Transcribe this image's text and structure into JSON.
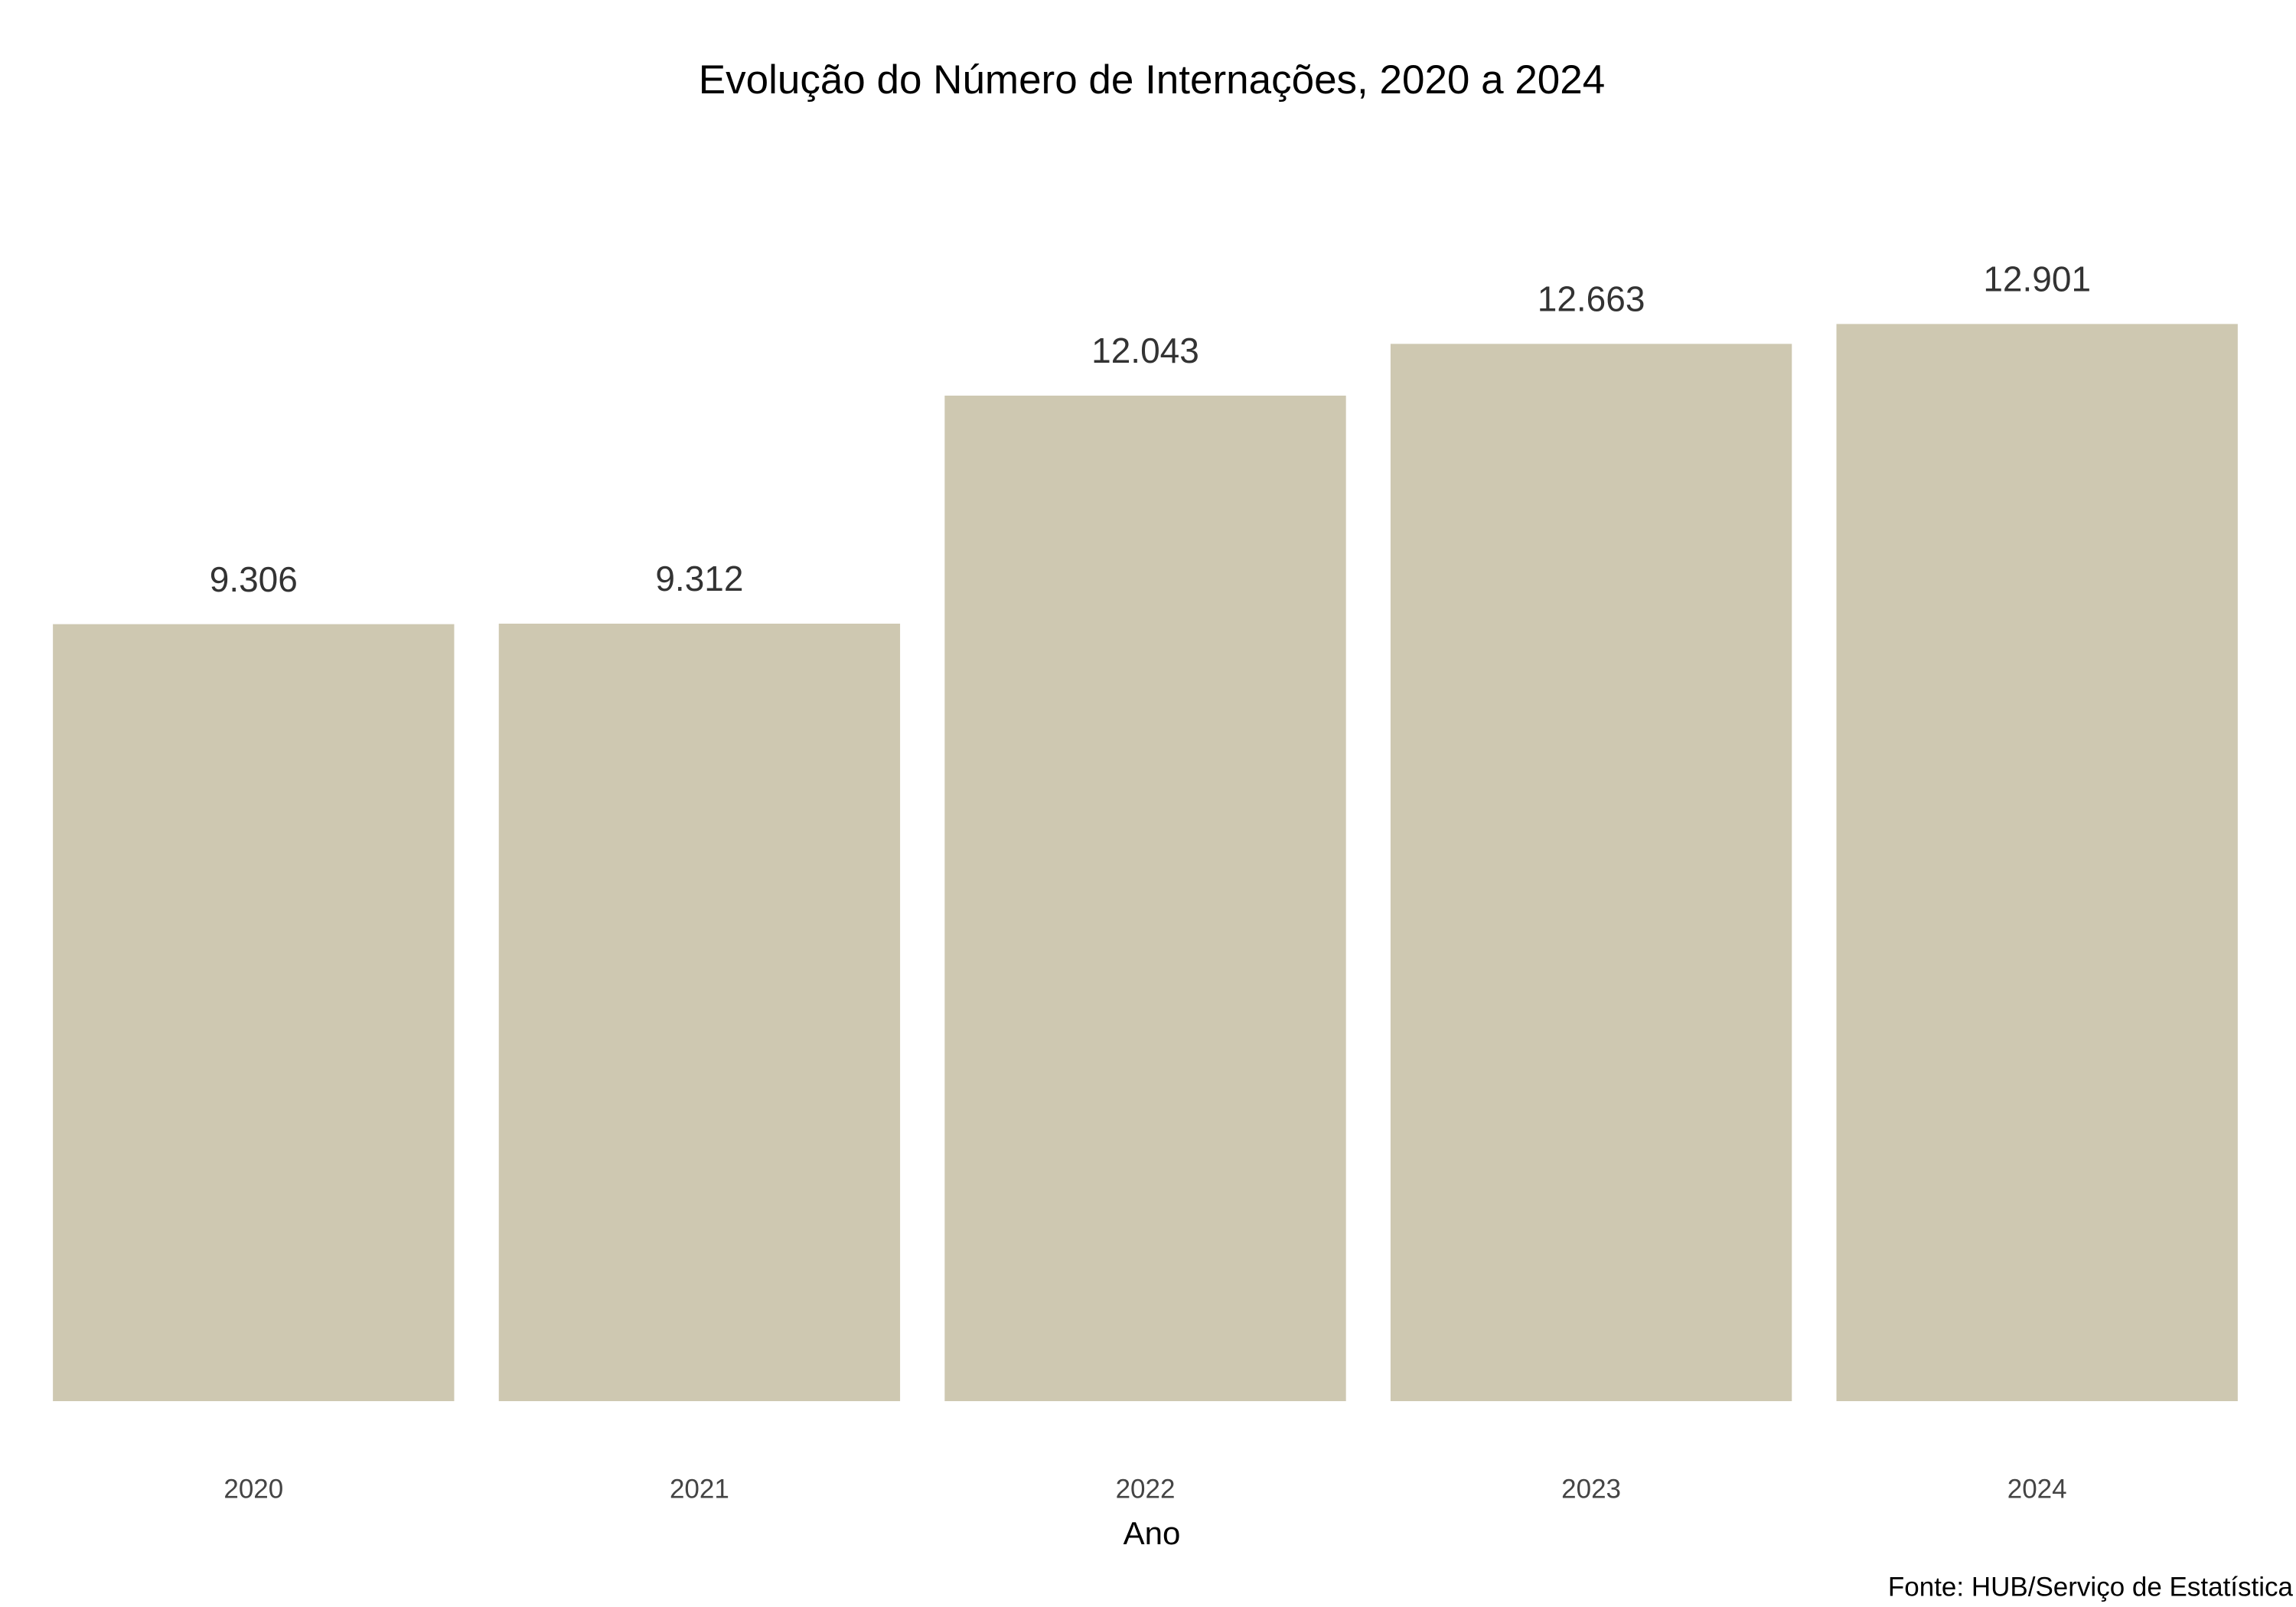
{
  "chart_data": {
    "type": "bar",
    "title": "Evolução do Número de Internações, 2020 a 2024",
    "x_label": "Ano",
    "source": "Fonte: HUB/Serviço de Estatística",
    "categories": [
      "2020",
      "2021",
      "2022",
      "2023",
      "2024"
    ],
    "values": [
      9306,
      9312,
      12043,
      12663,
      12901
    ],
    "value_labels": [
      "9.306",
      "9.312",
      "12.043",
      "12.663",
      "12.901"
    ],
    "color": "#cec8b1"
  }
}
